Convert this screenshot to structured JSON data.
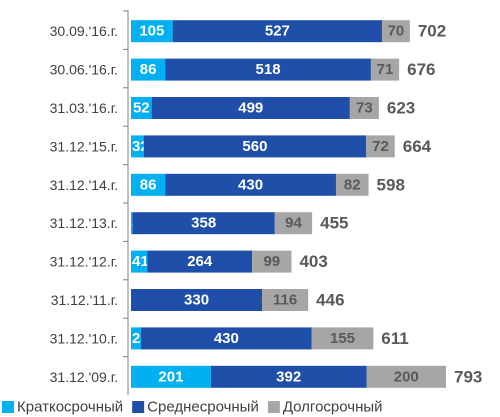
{
  "chart_data": {
    "type": "stacked-bar-horizontal",
    "categories": [
      "30.09.'16.г.",
      "30.06.'16.г.",
      "31.03.'16.г.",
      "31.12.'15.г.",
      "31.12.'14.г.",
      "31.12.'13.г.",
      "31.12.'12.г.",
      "31.12.'11.г.",
      "31.12.'10.г.",
      "31.12.'09.г."
    ],
    "series": [
      {
        "name": "Краткосрочный",
        "color": "#00b0f0",
        "values": [
          105,
          86,
          52,
          32,
          86,
          4,
          41,
          null,
          25,
          201
        ]
      },
      {
        "name": "Среднесрочный",
        "color": "#1f4fa8",
        "values": [
          527,
          518,
          499,
          560,
          430,
          358,
          264,
          330,
          430,
          392
        ]
      },
      {
        "name": "Долгосрочный",
        "color": "#a6a6a6",
        "values": [
          70,
          71,
          73,
          72,
          82,
          94,
          99,
          116,
          155,
          200
        ]
      }
    ],
    "totals": [
      702,
      676,
      623,
      664,
      598,
      455,
      403,
      446,
      611,
      793
    ],
    "legend": "bottom"
  }
}
